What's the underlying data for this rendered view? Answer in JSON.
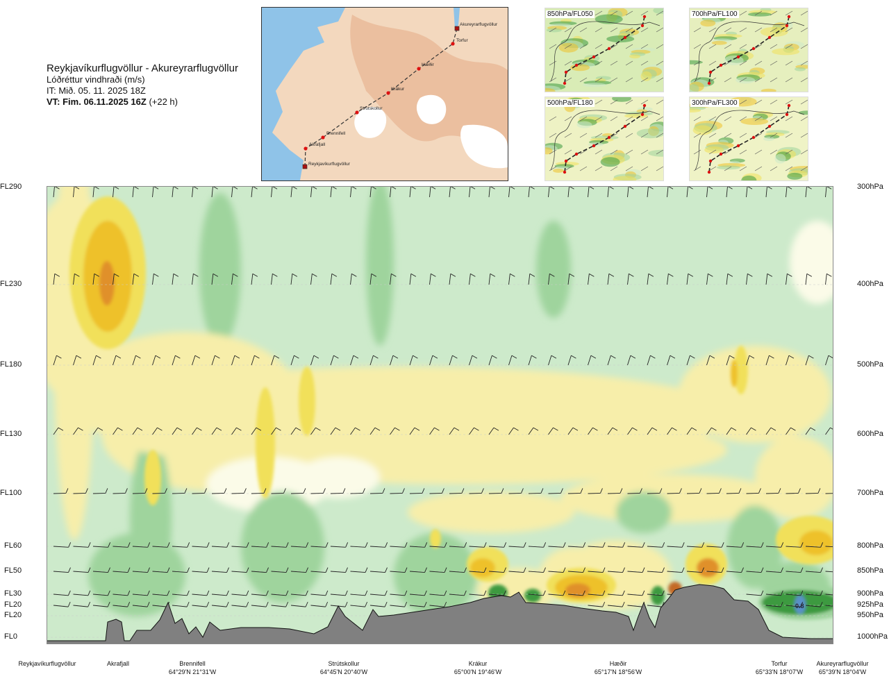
{
  "header": {
    "route": "Reykjavíkurflugvöllur - Akureyrarflugvöllur",
    "variable": "Lóðréttur vindhraði (m/s)",
    "init_time": "IT: Mið. 05. 11. 2025 18Z",
    "valid_bold": "VT: Fim. 06.11.2025 16Z",
    "valid_lead": "(+22 h)"
  },
  "map": {
    "points": [
      "Reykjavíkurflugvöllur",
      "Akrafjall",
      "Brennifell",
      "Strútskollur",
      "Krákur",
      "Hæðir",
      "Torfur",
      "Akureyrarflugvöllur"
    ],
    "colors": {
      "sea": "#8fc3e8",
      "land": "#f3d5b7",
      "highland": "#e9b08f",
      "glacier": "#ffffff",
      "route": "#333333",
      "point": "#dd1111"
    }
  },
  "mini_maps": [
    {
      "label": "850hPa/FL050"
    },
    {
      "label": "700hPa/FL100"
    },
    {
      "label": "500hPa/FL180"
    },
    {
      "label": "300hPa/FL300"
    }
  ],
  "chart_data": {
    "type": "heatmap",
    "variable": "Lóðréttur vindhraði (m/s)",
    "flight_levels": [
      "FL290",
      "FL230",
      "FL180",
      "FL130",
      "FL100",
      "FL60",
      "FL50",
      "FL30",
      "FL20",
      "FL20",
      "FL0"
    ],
    "pressure_levels": [
      "300hPa",
      "400hPa",
      "500hPa",
      "600hPa",
      "700hPa",
      "800hPa",
      "850hPa",
      "900hPa",
      "925hPa",
      "950hPa",
      "1000hPa"
    ],
    "pressure_values": [
      300,
      400,
      500,
      600,
      700,
      800,
      850,
      900,
      925,
      950,
      1000
    ],
    "stations": [
      {
        "name": "Reykjavíkurflugvöllur",
        "coord": ""
      },
      {
        "name": "Akrafjall",
        "coord": ""
      },
      {
        "name": "Brennifell",
        "coord": "64°29'N 21°31'W"
      },
      {
        "name": "Strútskollur",
        "coord": "64°45'N 20°40'W"
      },
      {
        "name": "Krákur",
        "coord": "65°00'N 19°46'W"
      },
      {
        "name": "Hæðir",
        "coord": "65°17'N 18°56'W"
      },
      {
        "name": "Torfur",
        "coord": "65°33'N 18°07'W"
      },
      {
        "name": "Akureyrarflugvöllur",
        "coord": "65°39'N 18°04'W"
      }
    ],
    "station_distance_fraction": [
      0.0,
      0.082,
      0.181,
      0.424,
      0.614,
      0.811,
      0.962,
      1.0
    ],
    "annotation": "0.8",
    "colors": {
      "strong_down": "#3d9a40",
      "down": "#9fd49d",
      "weak_down": "#cdeacb",
      "neutral": "#fbfbe8",
      "weak_up": "#f7eeaa",
      "up": "#f1e05a",
      "strong_up": "#eec12a",
      "max_up": "#e0902a",
      "peak_up": "#c46a28",
      "terrain": "#808080",
      "barb": "#222222"
    }
  }
}
